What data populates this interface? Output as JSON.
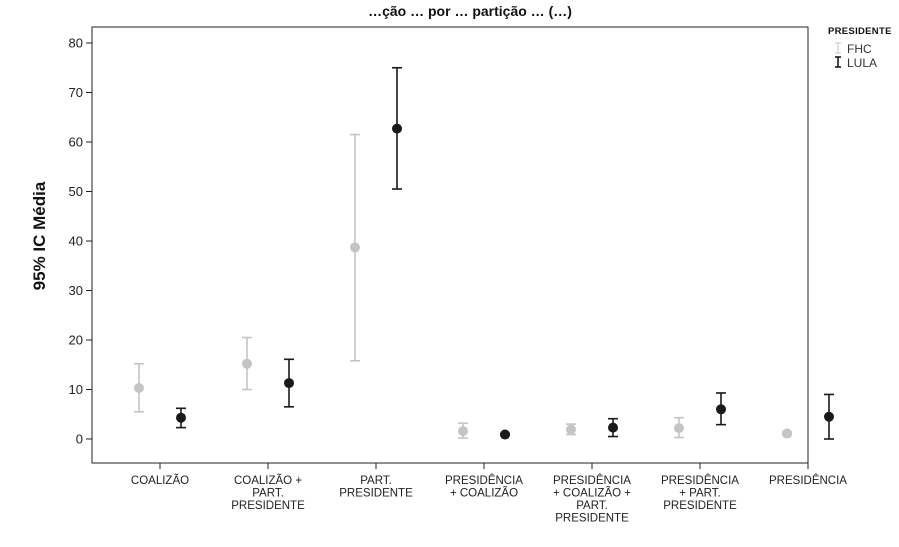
{
  "chart_data": {
    "type": "scatter",
    "subtype": "error-bar",
    "title": "…ção … por … partição … (…)",
    "ylabel": "95% IC Média",
    "xlabel": "",
    "ylim": [
      -5,
      83
    ],
    "yticks": [
      0,
      10,
      20,
      30,
      40,
      50,
      60,
      70,
      80
    ],
    "grid": false,
    "legend": {
      "title": "PRESIDENTE",
      "position": "outside-top-right"
    },
    "categories": [
      [
        "COALIZÃO"
      ],
      [
        "COALIZÃO +",
        "PART.",
        "PRESIDENTE"
      ],
      [
        "PART.",
        "PRESIDENTE"
      ],
      [
        "PRESIDÊNCIA",
        "+ COALIZÃO"
      ],
      [
        "PRESIDÊNCIA",
        "+ COALIZÃO +",
        "PART.",
        "PRESIDENTE"
      ],
      [
        "PRESIDÊNCIA",
        "+ PART.",
        "PRESIDENTE"
      ],
      [
        "PRESIDÊNCIA"
      ]
    ],
    "series": [
      {
        "name": "FHC",
        "color": "#c4c4c4",
        "mean": [
          10.3,
          15.2,
          38.7,
          1.6,
          1.9,
          2.2,
          1.1
        ],
        "lower": [
          5.5,
          10.0,
          15.8,
          0.2,
          0.9,
          0.3,
          0.8
        ],
        "upper": [
          15.2,
          20.5,
          61.5,
          3.2,
          3.0,
          4.3,
          1.4
        ]
      },
      {
        "name": "LULA",
        "color": "#1a1a1a",
        "mean": [
          4.3,
          11.3,
          62.7,
          0.9,
          2.3,
          6.0,
          4.5
        ],
        "lower": [
          2.3,
          6.5,
          50.5,
          0.8,
          0.5,
          2.9,
          0.0
        ],
        "upper": [
          6.2,
          16.1,
          75.0,
          1.1,
          4.1,
          9.3,
          9.0
        ]
      }
    ]
  }
}
